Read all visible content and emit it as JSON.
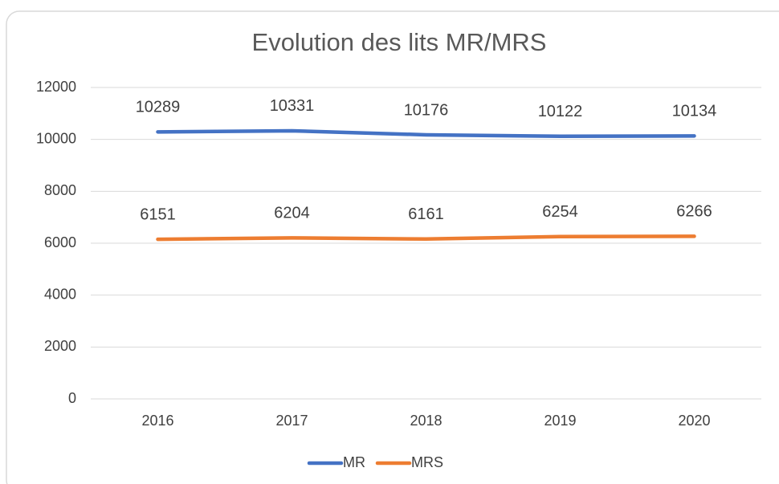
{
  "chart_data": {
    "type": "line",
    "title": "Evolution des lits MR/MRS",
    "categories": [
      "2016",
      "2017",
      "2018",
      "2019",
      "2020"
    ],
    "series": [
      {
        "name": "MR",
        "color": "#4472c4",
        "values": [
          10289,
          10331,
          10176,
          10122,
          10134
        ]
      },
      {
        "name": "MRS",
        "color": "#ed7d31",
        "values": [
          6151,
          6204,
          6161,
          6254,
          6266
        ]
      }
    ],
    "ylim": [
      0,
      12000
    ],
    "yticks": [
      0,
      2000,
      4000,
      6000,
      8000,
      10000,
      12000
    ],
    "grid": true,
    "legend": "bottom"
  }
}
